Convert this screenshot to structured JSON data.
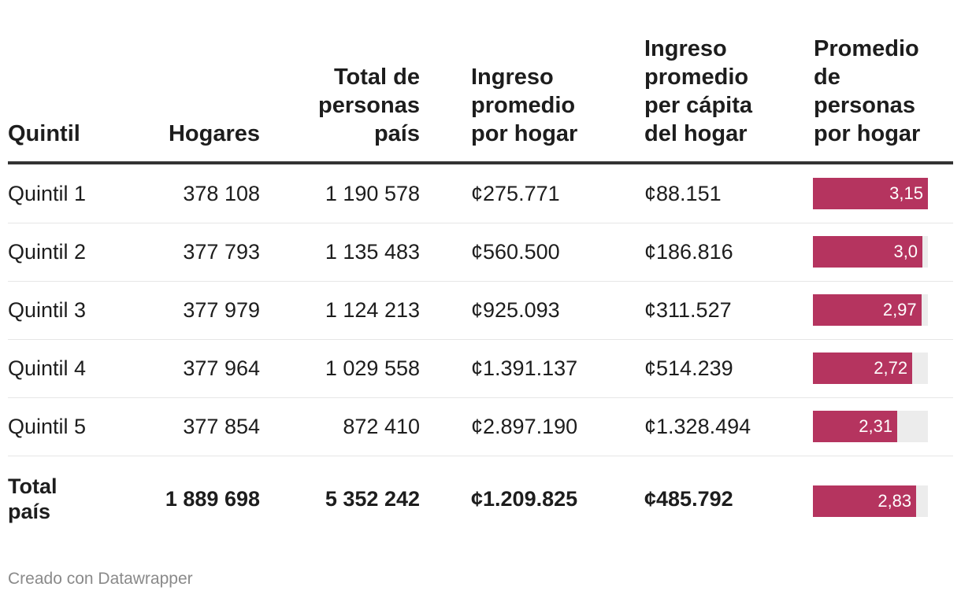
{
  "chart_data": {
    "type": "table",
    "columns": [
      "Quintil",
      "Hogares",
      "Total de personas país",
      "Ingreso promedio por hogar",
      "Ingreso promedio per cápita del hogar",
      "Promedio de personas por hogar"
    ],
    "header_lines": [
      [
        "Quintil"
      ],
      [
        "Hogares"
      ],
      [
        "Total de",
        "personas",
        "país"
      ],
      [
        "Ingreso",
        "promedio",
        "por hogar"
      ],
      [
        "Ingreso",
        "promedio",
        "per cápita",
        "del hogar"
      ],
      [
        "Promedio",
        "de",
        "personas",
        "por hogar"
      ]
    ],
    "rows": [
      {
        "quintil": "Quintil 1",
        "hogares": "378 108",
        "personas": "1 190 578",
        "ingreso_hogar": "¢275.771",
        "ingreso_per_capita": "¢88.151",
        "promedio_label": "3,15",
        "promedio": 3.15
      },
      {
        "quintil": "Quintil 2",
        "hogares": "377 793",
        "personas": "1 135 483",
        "ingreso_hogar": "¢560.500",
        "ingreso_per_capita": "¢186.816",
        "promedio_label": "3,0",
        "promedio": 3.0
      },
      {
        "quintil": "Quintil 3",
        "hogares": "377 979",
        "personas": "1 124 213",
        "ingreso_hogar": "¢925.093",
        "ingreso_per_capita": "¢311.527",
        "promedio_label": "2,97",
        "promedio": 2.97
      },
      {
        "quintil": "Quintil 4",
        "hogares": "377 964",
        "personas": "1 029 558",
        "ingreso_hogar": "¢1.391.137",
        "ingreso_per_capita": "¢514.239",
        "promedio_label": "2,72",
        "promedio": 2.72
      },
      {
        "quintil": "Quintil 5",
        "hogares": "377 854",
        "personas": "872 410",
        "ingreso_hogar": "¢2.897.190",
        "ingreso_per_capita": "¢1.328.494",
        "promedio_label": "2,31",
        "promedio": 2.31
      }
    ],
    "total": {
      "quintil": "Total país",
      "hogares": "1 889 698",
      "personas": "5 352 242",
      "ingreso_hogar": "¢1.209.825",
      "ingreso_per_capita": "¢485.792",
      "promedio_label": "2,83",
      "promedio": 2.83
    },
    "bar_max": 3.15,
    "bar_color": "#b5345f",
    "bar_track_color": "#ececec"
  },
  "footer": "Creado con Datawrapper"
}
